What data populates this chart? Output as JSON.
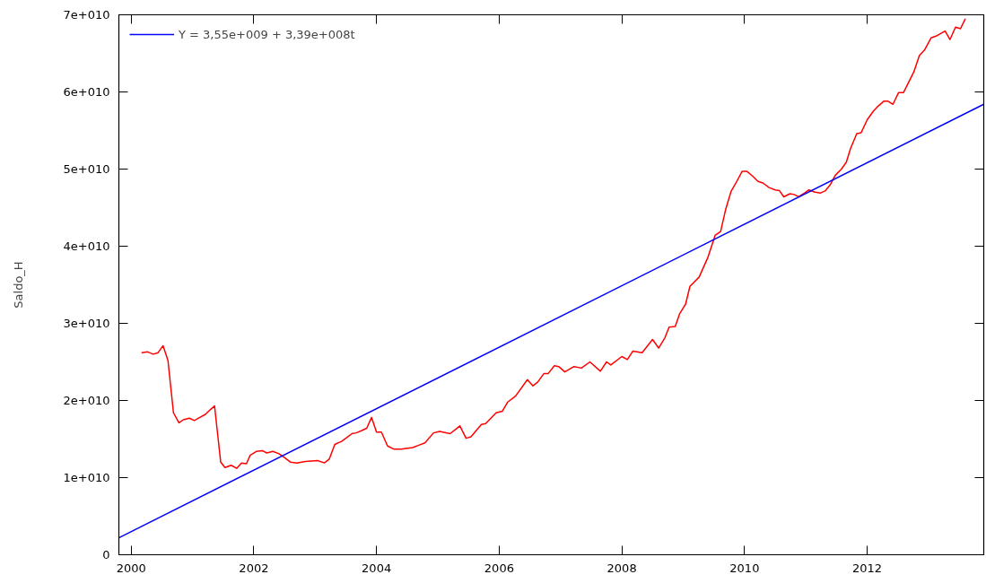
{
  "chart_data": {
    "type": "line",
    "ylabel": "Saldo_H",
    "x": [
      2000.17,
      2000.27,
      2000.36,
      2000.44,
      2000.52,
      2000.6,
      2000.69,
      2000.78,
      2000.85,
      2000.95,
      2001.03,
      2001.12,
      2001.21,
      2001.29,
      2001.36,
      2001.46,
      2001.53,
      2001.63,
      2001.72,
      2001.8,
      2001.88,
      2001.94,
      2002.04,
      2002.14,
      2002.21,
      2002.31,
      2002.41,
      2002.5,
      2002.6,
      2002.7,
      2002.84,
      2003.04,
      2003.15,
      2003.23,
      2003.32,
      2003.43,
      2003.5,
      2003.6,
      2003.67,
      2003.76,
      2003.84,
      2003.92,
      2004.0,
      2004.08,
      2004.18,
      2004.28,
      2004.4,
      2004.59,
      2004.69,
      2004.79,
      2004.93,
      2005.03,
      2005.2,
      2005.36,
      2005.46,
      2005.54,
      2005.71,
      2005.78,
      2005.95,
      2006.05,
      2006.14,
      2006.27,
      2006.46,
      2006.55,
      2006.63,
      2006.73,
      2006.8,
      2006.9,
      2006.97,
      2007.07,
      2007.22,
      2007.34,
      2007.48,
      2007.65,
      2007.75,
      2007.82,
      2008.0,
      2008.09,
      2008.18,
      2008.33,
      2008.5,
      2008.6,
      2008.7,
      2008.77,
      2008.87,
      2008.94,
      2009.04,
      2009.11,
      2009.26,
      2009.4,
      2009.52,
      2009.61,
      2009.69,
      2009.78,
      2009.86,
      2009.96,
      2010.04,
      2010.13,
      2010.22,
      2010.3,
      2010.4,
      2010.5,
      2010.57,
      2010.64,
      2010.74,
      2010.81,
      2010.88,
      2010.98,
      2011.05,
      2011.15,
      2011.24,
      2011.32,
      2011.4,
      2011.48,
      2011.58,
      2011.66,
      2011.73,
      2011.83,
      2011.9,
      2012.0,
      2012.1,
      2012.17,
      2012.27,
      2012.34,
      2012.42,
      2012.51,
      2012.59,
      2012.66,
      2012.76,
      2012.85,
      2012.94,
      2013.04,
      2013.14,
      2013.27,
      2013.35,
      2013.44,
      2013.52,
      2013.6
    ],
    "series": [
      {
        "color": "#ff0000",
        "values": [
          26200000000.0,
          26300000000.0,
          26000000000.0,
          26200000000.0,
          27100000000.0,
          25200000000.0,
          18400000000.0,
          17100000000.0,
          17500000000.0,
          17700000000.0,
          17400000000.0,
          17800000000.0,
          18200000000.0,
          18800000000.0,
          19300000000.0,
          12000000000.0,
          11300000000.0,
          11600000000.0,
          11200000000.0,
          11900000000.0,
          11800000000.0,
          12900000000.0,
          13400000000.0,
          13500000000.0,
          13200000000.0,
          13400000000.0,
          13100000000.0,
          12600000000.0,
          12000000000.0,
          11900000000.0,
          12100000000.0,
          12200000000.0,
          11900000000.0,
          12400000000.0,
          14300000000.0,
          14700000000.0,
          15100000000.0,
          15700000000.0,
          15800000000.0,
          16100000000.0,
          16400000000.0,
          17800000000.0,
          15900000000.0,
          15900000000.0,
          14100000000.0,
          13700000000.0,
          13700000000.0,
          13900000000.0,
          14200000000.0,
          14500000000.0,
          15800000000.0,
          16000000000.0,
          15700000000.0,
          16700000000.0,
          15100000000.0,
          15300000000.0,
          16900000000.0,
          17000000000.0,
          18400000000.0,
          18600000000.0,
          19800000000.0,
          20600000000.0,
          22700000000.0,
          21900000000.0,
          22400000000.0,
          23500000000.0,
          23500000000.0,
          24500000000.0,
          24400000000.0,
          23700000000.0,
          24400000000.0,
          24200000000.0,
          25000000000.0,
          23800000000.0,
          25000000000.0,
          24600000000.0,
          25700000000.0,
          25300000000.0,
          26400000000.0,
          26200000000.0,
          27900000000.0,
          26800000000.0,
          28100000000.0,
          29500000000.0,
          29600000000.0,
          31200000000.0,
          32500000000.0,
          34800000000.0,
          36000000000.0,
          38500000000.0,
          41400000000.0,
          41900000000.0,
          44700000000.0,
          47100000000.0,
          48200000000.0,
          49700000000.0,
          49700000000.0,
          49100000000.0,
          48400000000.0,
          48200000000.0,
          47600000000.0,
          47300000000.0,
          47200000000.0,
          46400000000.0,
          46800000000.0,
          46700000000.0,
          46400000000.0,
          46900000000.0,
          47300000000.0,
          47000000000.0,
          46900000000.0,
          47200000000.0,
          48000000000.0,
          49200000000.0,
          50000000000.0,
          50900000000.0,
          52700000000.0,
          54600000000.0,
          54700000000.0,
          56400000000.0,
          57500000000.0,
          58100000000.0,
          58800000000.0,
          58800000000.0,
          58400000000.0,
          59900000000.0,
          59900000000.0,
          61000000000.0,
          62600000000.0,
          64700000000.0,
          65500000000.0,
          67000000000.0,
          67300000000.0,
          67900000000.0,
          66800000000.0,
          68400000000.0,
          68200000000.0,
          69500000000.0
        ]
      },
      {
        "name": "Y = 3,55e+009 + 3,39e+008t",
        "type": "line",
        "color": "#0000ff",
        "x": [
          1999.8,
          2013.9
        ],
        "values": [
          2200000000.0,
          58400000000.0
        ]
      }
    ],
    "xlim": [
      1999.8,
      2013.9
    ],
    "xticks": [
      2000,
      2002,
      2004,
      2006,
      2008,
      2010,
      2012
    ],
    "ylim": [
      0,
      70000000000.0
    ],
    "yticks": [
      0,
      {
        "value": 10000000000.0,
        "label": "1e+010"
      },
      {
        "value": 20000000000.0,
        "label": "2e+010"
      },
      {
        "value": 30000000000.0,
        "label": "3e+010"
      },
      {
        "value": 40000000000.0,
        "label": "4e+010"
      },
      {
        "value": 50000000000.0,
        "label": "5e+010"
      },
      {
        "value": 60000000000.0,
        "label": "6e+010"
      },
      {
        "value": 70000000000.0,
        "label": "7e+010"
      }
    ],
    "grid": false,
    "legend": "top left"
  }
}
